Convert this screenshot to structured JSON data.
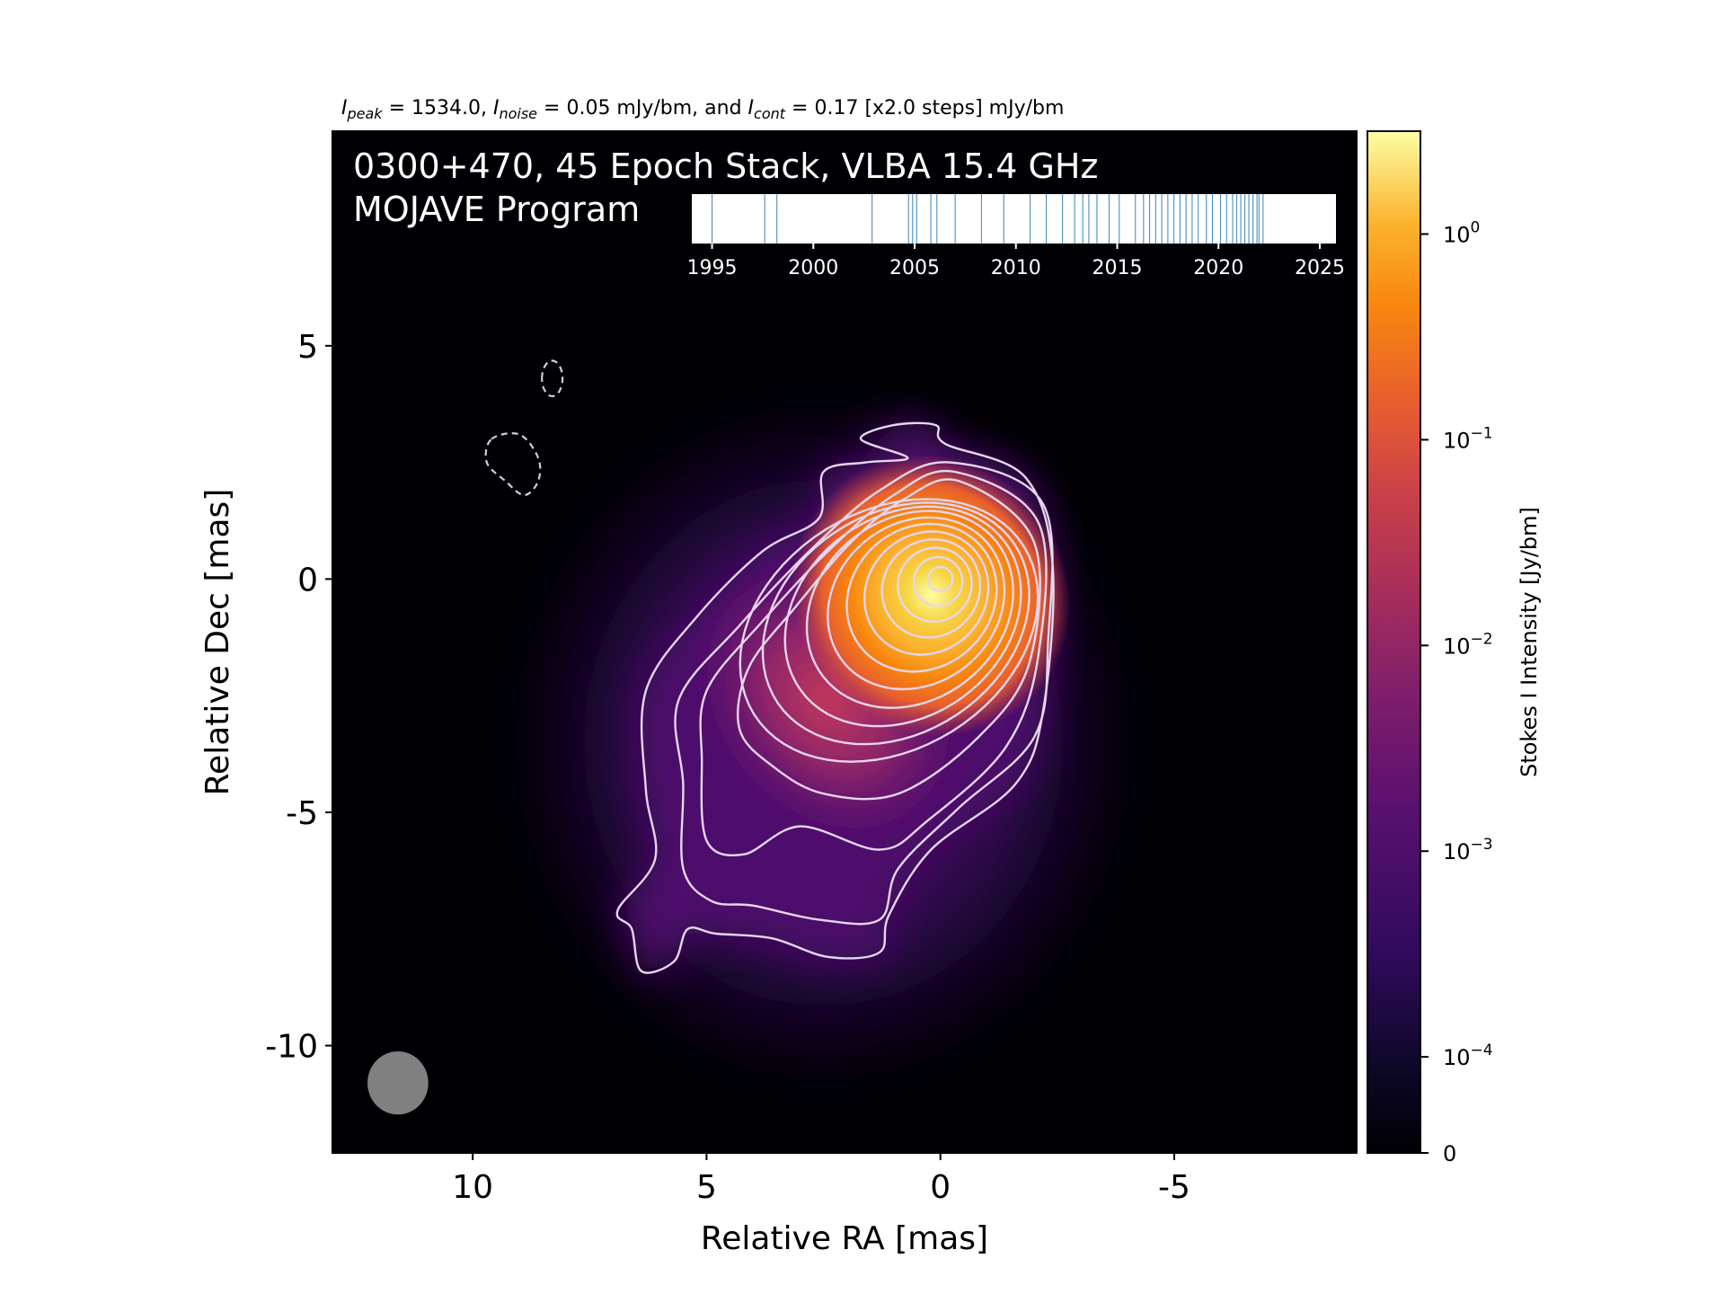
{
  "chart_data": {
    "type": "heatmap",
    "header": {
      "peak_sym": "I",
      "peak_sub": "peak",
      "peak_val": " = 1534.0, ",
      "noise_sym": "I",
      "noise_sub": "noise",
      "noise_val": " = 0.05 mJy/bm, and ",
      "cont_sym": "I",
      "cont_sub": "cont",
      "cont_val": " = 0.17 [x2.0 steps] mJy/bm"
    },
    "title_line1": "0300+470, 45 Epoch Stack, VLBA 15.4 GHz",
    "title_line2": "MOJAVE Program",
    "xlabel": "Relative RA [mas]",
    "ylabel": "Relative Dec [mas]",
    "xlim": [
      13.0,
      -8.9
    ],
    "ylim": [
      -12.3,
      9.6
    ],
    "xticks": [
      {
        "value": 10,
        "label": "10"
      },
      {
        "value": 5,
        "label": "5"
      },
      {
        "value": 0,
        "label": "0"
      },
      {
        "value": -5,
        "label": "-5"
      }
    ],
    "yticks": [
      {
        "value": 5,
        "label": "5"
      },
      {
        "value": 0,
        "label": "0"
      },
      {
        "value": -5,
        "label": "-5"
      },
      {
        "value": -10,
        "label": "-10"
      }
    ],
    "colormap": "inferno",
    "colorbar": {
      "label": "Stokes I Intensity [Jy/bm]",
      "scale": "symlog",
      "ticks": [
        {
          "value": 1,
          "base": "10",
          "exp": "0"
        },
        {
          "value": 0.1,
          "base": "10",
          "exp": "−1"
        },
        {
          "value": 0.01,
          "base": "10",
          "exp": "−2"
        },
        {
          "value": 0.001,
          "base": "10",
          "exp": "−3"
        },
        {
          "value": 0.0001,
          "base": "10",
          "exp": "−4"
        },
        {
          "value": 0,
          "base": "0",
          "exp": ""
        }
      ]
    },
    "peak_position": {
      "ra": 0.0,
      "dec": 0.0
    },
    "contour_levels_mJy": [
      0.17,
      0.34,
      0.68,
      1.36,
      2.72,
      5.44,
      10.88,
      21.76,
      43.52,
      87.04,
      174.08,
      348.16,
      696.32,
      1392.64
    ],
    "negative_contour_level_mJy": -0.17,
    "beam": {
      "major_mas": 1.5,
      "minor_mas": 1.3,
      "pa_deg": 0,
      "ra": 11.6,
      "dec": -10.8
    },
    "epochs": {
      "xlim": [
        1994.0,
        2025.8
      ],
      "ticks": [
        {
          "value": 1995,
          "label": "1995"
        },
        {
          "value": 2000,
          "label": "2000"
        },
        {
          "value": 2005,
          "label": "2005"
        },
        {
          "value": 2010,
          "label": "2010"
        },
        {
          "value": 2015,
          "label": "2015"
        },
        {
          "value": 2020,
          "label": "2020"
        },
        {
          "value": 2025,
          "label": "2025"
        }
      ],
      "dates": [
        1995.0,
        1997.6,
        1998.2,
        2002.9,
        2004.7,
        2004.9,
        2005.1,
        2005.8,
        2006.1,
        2007.0,
        2008.3,
        2009.4,
        2010.7,
        2011.5,
        2012.3,
        2012.9,
        2013.3,
        2013.6,
        2014.0,
        2014.6,
        2015.1,
        2015.9,
        2016.3,
        2016.6,
        2016.9,
        2017.2,
        2017.5,
        2017.8,
        2018.1,
        2018.4,
        2018.7,
        2019.0,
        2019.4,
        2019.7,
        2020.1,
        2020.4,
        2020.7,
        2020.9,
        2021.1,
        2021.3,
        2021.5,
        2021.7,
        2021.9,
        2022.0,
        2022.2
      ]
    }
  }
}
